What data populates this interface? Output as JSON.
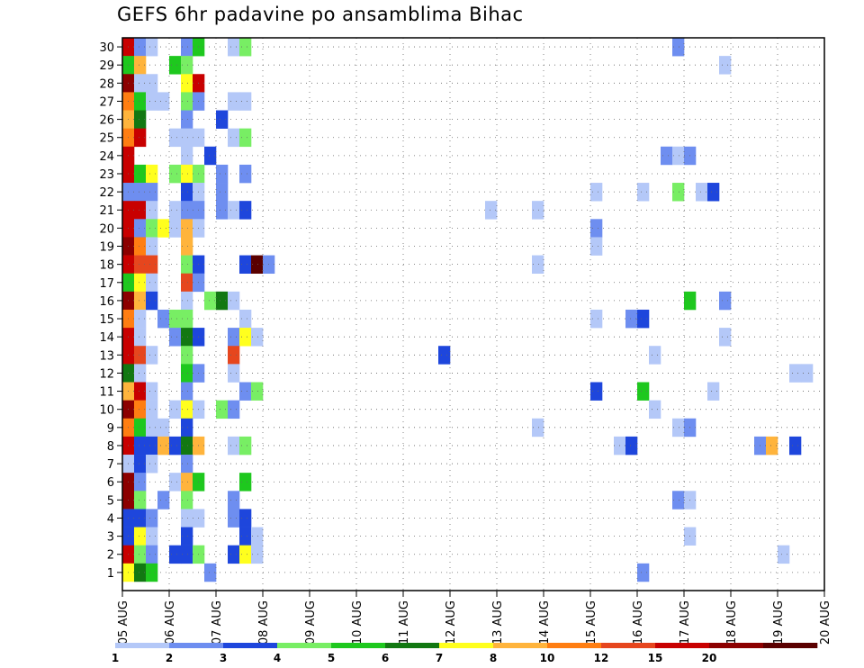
{
  "chart_data": {
    "type": "heatmap",
    "title": "GEFS 6hr padavine po ansamblima Bihac",
    "y_categories": [
      "1",
      "2",
      "3",
      "4",
      "5",
      "6",
      "7",
      "8",
      "9",
      "10",
      "11",
      "12",
      "13",
      "14",
      "15",
      "16",
      "17",
      "18",
      "19",
      "20",
      "21",
      "22",
      "23",
      "24",
      "25",
      "26",
      "27",
      "28",
      "29",
      "30"
    ],
    "x_tick_labels": [
      "05 AUG",
      "06 AUG",
      "07 AUG",
      "08 AUG",
      "09 AUG",
      "10 AUG",
      "11 AUG",
      "12 AUG",
      "13 AUG",
      "14 AUG",
      "15 AUG",
      "16 AUG",
      "17 AUG",
      "18 AUG",
      "19 AUG",
      "20 AUG"
    ],
    "x_steps_per_day": 4,
    "x_total_steps": 60,
    "grid": true,
    "legend_position": "bottom",
    "color_levels": [
      {
        "color": "#b4c8f8",
        "label": "1"
      },
      {
        "color": "#6e8ef0",
        "label": "2"
      },
      {
        "color": "#1e46dc",
        "label": "3"
      },
      {
        "color": "#78ee64",
        "label": "4"
      },
      {
        "color": "#1ec81e",
        "label": "5"
      },
      {
        "color": "#127812",
        "label": "6"
      },
      {
        "color": "#ffff1e",
        "label": "7"
      },
      {
        "color": "#ffb43c",
        "label": "8"
      },
      {
        "color": "#ff7e12",
        "label": "10"
      },
      {
        "color": "#e6461e",
        "label": "12"
      },
      {
        "color": "#c80000",
        "label": "15"
      },
      {
        "color": "#8c0000",
        "label": "20"
      },
      {
        "color": "#5a0000",
        "label": ""
      }
    ],
    "cells_note": "each cell: [member, time_step_index(0 = 05 AUG 00z, 6h steps), color_level_index]",
    "cells": [
      [
        30,
        0,
        10
      ],
      [
        30,
        1,
        1
      ],
      [
        30,
        2,
        0
      ],
      [
        30,
        5,
        1
      ],
      [
        30,
        6,
        4
      ],
      [
        30,
        9,
        0
      ],
      [
        30,
        10,
        3
      ],
      [
        30,
        47,
        1
      ],
      [
        29,
        0,
        4
      ],
      [
        29,
        1,
        7
      ],
      [
        29,
        4,
        4
      ],
      [
        29,
        5,
        3
      ],
      [
        29,
        51,
        0
      ],
      [
        28,
        0,
        11
      ],
      [
        28,
        1,
        0
      ],
      [
        28,
        2,
        0
      ],
      [
        28,
        5,
        6
      ],
      [
        28,
        6,
        10
      ],
      [
        27,
        0,
        8
      ],
      [
        27,
        1,
        4
      ],
      [
        27,
        2,
        0
      ],
      [
        27,
        3,
        0
      ],
      [
        27,
        5,
        3
      ],
      [
        27,
        6,
        1
      ],
      [
        27,
        9,
        0
      ],
      [
        27,
        10,
        0
      ],
      [
        26,
        0,
        7
      ],
      [
        26,
        1,
        5
      ],
      [
        26,
        5,
        1
      ],
      [
        26,
        8,
        2
      ],
      [
        25,
        0,
        8
      ],
      [
        25,
        1,
        10
      ],
      [
        25,
        4,
        0
      ],
      [
        25,
        5,
        0
      ],
      [
        25,
        6,
        0
      ],
      [
        25,
        9,
        0
      ],
      [
        25,
        10,
        3
      ],
      [
        24,
        0,
        10
      ],
      [
        24,
        5,
        0
      ],
      [
        24,
        7,
        2
      ],
      [
        24,
        46,
        1
      ],
      [
        24,
        47,
        0
      ],
      [
        24,
        48,
        1
      ],
      [
        23,
        0,
        10
      ],
      [
        23,
        1,
        4
      ],
      [
        23,
        2,
        6
      ],
      [
        23,
        4,
        3
      ],
      [
        23,
        5,
        6
      ],
      [
        23,
        6,
        3
      ],
      [
        23,
        8,
        1
      ],
      [
        23,
        10,
        1
      ],
      [
        22,
        0,
        1
      ],
      [
        22,
        1,
        1
      ],
      [
        22,
        2,
        1
      ],
      [
        22,
        5,
        2
      ],
      [
        22,
        6,
        0
      ],
      [
        22,
        8,
        1
      ],
      [
        22,
        40,
        0
      ],
      [
        22,
        44,
        0
      ],
      [
        22,
        47,
        3
      ],
      [
        22,
        49,
        0
      ],
      [
        22,
        50,
        2
      ],
      [
        21,
        0,
        10
      ],
      [
        21,
        1,
        10
      ],
      [
        21,
        2,
        0
      ],
      [
        21,
        4,
        0
      ],
      [
        21,
        5,
        1
      ],
      [
        21,
        6,
        1
      ],
      [
        21,
        8,
        1
      ],
      [
        21,
        9,
        0
      ],
      [
        21,
        10,
        2
      ],
      [
        21,
        31,
        0
      ],
      [
        21,
        35,
        0
      ],
      [
        20,
        0,
        10
      ],
      [
        20,
        1,
        1
      ],
      [
        20,
        2,
        3
      ],
      [
        20,
        3,
        6
      ],
      [
        20,
        4,
        0
      ],
      [
        20,
        5,
        7
      ],
      [
        20,
        6,
        0
      ],
      [
        20,
        40,
        1
      ],
      [
        19,
        0,
        11
      ],
      [
        19,
        1,
        8
      ],
      [
        19,
        2,
        0
      ],
      [
        19,
        5,
        7
      ],
      [
        19,
        40,
        0
      ],
      [
        18,
        0,
        10
      ],
      [
        18,
        1,
        9
      ],
      [
        18,
        2,
        9
      ],
      [
        18,
        5,
        3
      ],
      [
        18,
        6,
        2
      ],
      [
        18,
        10,
        2
      ],
      [
        18,
        11,
        12
      ],
      [
        18,
        12,
        1
      ],
      [
        18,
        35,
        0
      ],
      [
        17,
        0,
        4
      ],
      [
        17,
        1,
        6
      ],
      [
        17,
        2,
        0
      ],
      [
        17,
        5,
        9
      ],
      [
        17,
        6,
        1
      ],
      [
        16,
        0,
        11
      ],
      [
        16,
        1,
        7
      ],
      [
        16,
        2,
        2
      ],
      [
        16,
        5,
        0
      ],
      [
        16,
        7,
        3
      ],
      [
        16,
        8,
        5
      ],
      [
        16,
        9,
        0
      ],
      [
        16,
        48,
        4
      ],
      [
        16,
        51,
        1
      ],
      [
        15,
        0,
        8
      ],
      [
        15,
        1,
        0
      ],
      [
        15,
        3,
        1
      ],
      [
        15,
        4,
        3
      ],
      [
        15,
        5,
        3
      ],
      [
        15,
        10,
        0
      ],
      [
        15,
        40,
        0
      ],
      [
        15,
        43,
        1
      ],
      [
        15,
        44,
        2
      ],
      [
        14,
        0,
        10
      ],
      [
        14,
        1,
        0
      ],
      [
        14,
        4,
        1
      ],
      [
        14,
        5,
        5
      ],
      [
        14,
        6,
        2
      ],
      [
        14,
        9,
        1
      ],
      [
        14,
        10,
        6
      ],
      [
        14,
        11,
        0
      ],
      [
        14,
        51,
        0
      ],
      [
        13,
        0,
        10
      ],
      [
        13,
        1,
        9
      ],
      [
        13,
        2,
        0
      ],
      [
        13,
        5,
        3
      ],
      [
        13,
        9,
        9
      ],
      [
        13,
        27,
        2
      ],
      [
        13,
        45,
        0
      ],
      [
        12,
        0,
        5
      ],
      [
        12,
        1,
        0
      ],
      [
        12,
        5,
        4
      ],
      [
        12,
        6,
        1
      ],
      [
        12,
        9,
        0
      ],
      [
        12,
        57,
        0
      ],
      [
        12,
        58,
        0
      ],
      [
        11,
        0,
        7
      ],
      [
        11,
        1,
        10
      ],
      [
        11,
        2,
        0
      ],
      [
        11,
        5,
        1
      ],
      [
        11,
        10,
        1
      ],
      [
        11,
        11,
        3
      ],
      [
        11,
        40,
        2
      ],
      [
        11,
        44,
        4
      ],
      [
        11,
        50,
        0
      ],
      [
        10,
        0,
        11
      ],
      [
        10,
        1,
        8
      ],
      [
        10,
        2,
        0
      ],
      [
        10,
        4,
        0
      ],
      [
        10,
        5,
        6
      ],
      [
        10,
        6,
        0
      ],
      [
        10,
        8,
        3
      ],
      [
        10,
        9,
        1
      ],
      [
        10,
        45,
        0
      ],
      [
        9,
        0,
        8
      ],
      [
        9,
        1,
        4
      ],
      [
        9,
        2,
        0
      ],
      [
        9,
        3,
        0
      ],
      [
        9,
        5,
        2
      ],
      [
        9,
        35,
        0
      ],
      [
        9,
        47,
        0
      ],
      [
        9,
        48,
        1
      ],
      [
        8,
        0,
        10
      ],
      [
        8,
        1,
        2
      ],
      [
        8,
        2,
        2
      ],
      [
        8,
        3,
        7
      ],
      [
        8,
        4,
        2
      ],
      [
        8,
        5,
        5
      ],
      [
        8,
        6,
        7
      ],
      [
        8,
        9,
        0
      ],
      [
        8,
        10,
        3
      ],
      [
        8,
        42,
        0
      ],
      [
        8,
        43,
        2
      ],
      [
        8,
        54,
        1
      ],
      [
        8,
        55,
        7
      ],
      [
        8,
        57,
        2
      ],
      [
        7,
        0,
        0
      ],
      [
        7,
        1,
        2
      ],
      [
        7,
        2,
        0
      ],
      [
        7,
        5,
        1
      ],
      [
        6,
        0,
        11
      ],
      [
        6,
        1,
        1
      ],
      [
        6,
        4,
        0
      ],
      [
        6,
        5,
        7
      ],
      [
        6,
        6,
        4
      ],
      [
        6,
        10,
        4
      ],
      [
        5,
        0,
        11
      ],
      [
        5,
        1,
        3
      ],
      [
        5,
        3,
        1
      ],
      [
        5,
        5,
        3
      ],
      [
        5,
        9,
        1
      ],
      [
        5,
        47,
        1
      ],
      [
        5,
        48,
        0
      ],
      [
        4,
        0,
        2
      ],
      [
        4,
        1,
        2
      ],
      [
        4,
        2,
        1
      ],
      [
        4,
        5,
        0
      ],
      [
        4,
        6,
        0
      ],
      [
        4,
        9,
        1
      ],
      [
        4,
        10,
        2
      ],
      [
        3,
        0,
        2
      ],
      [
        3,
        1,
        6
      ],
      [
        3,
        2,
        0
      ],
      [
        3,
        5,
        2
      ],
      [
        3,
        10,
        2
      ],
      [
        3,
        11,
        0
      ],
      [
        3,
        48,
        0
      ],
      [
        2,
        0,
        10
      ],
      [
        2,
        1,
        3
      ],
      [
        2,
        2,
        1
      ],
      [
        2,
        4,
        2
      ],
      [
        2,
        5,
        2
      ],
      [
        2,
        6,
        3
      ],
      [
        2,
        9,
        2
      ],
      [
        2,
        10,
        6
      ],
      [
        2,
        11,
        0
      ],
      [
        2,
        56,
        0
      ],
      [
        1,
        0,
        6
      ],
      [
        1,
        1,
        5
      ],
      [
        1,
        2,
        4
      ],
      [
        1,
        7,
        1
      ],
      [
        1,
        44,
        1
      ]
    ]
  }
}
